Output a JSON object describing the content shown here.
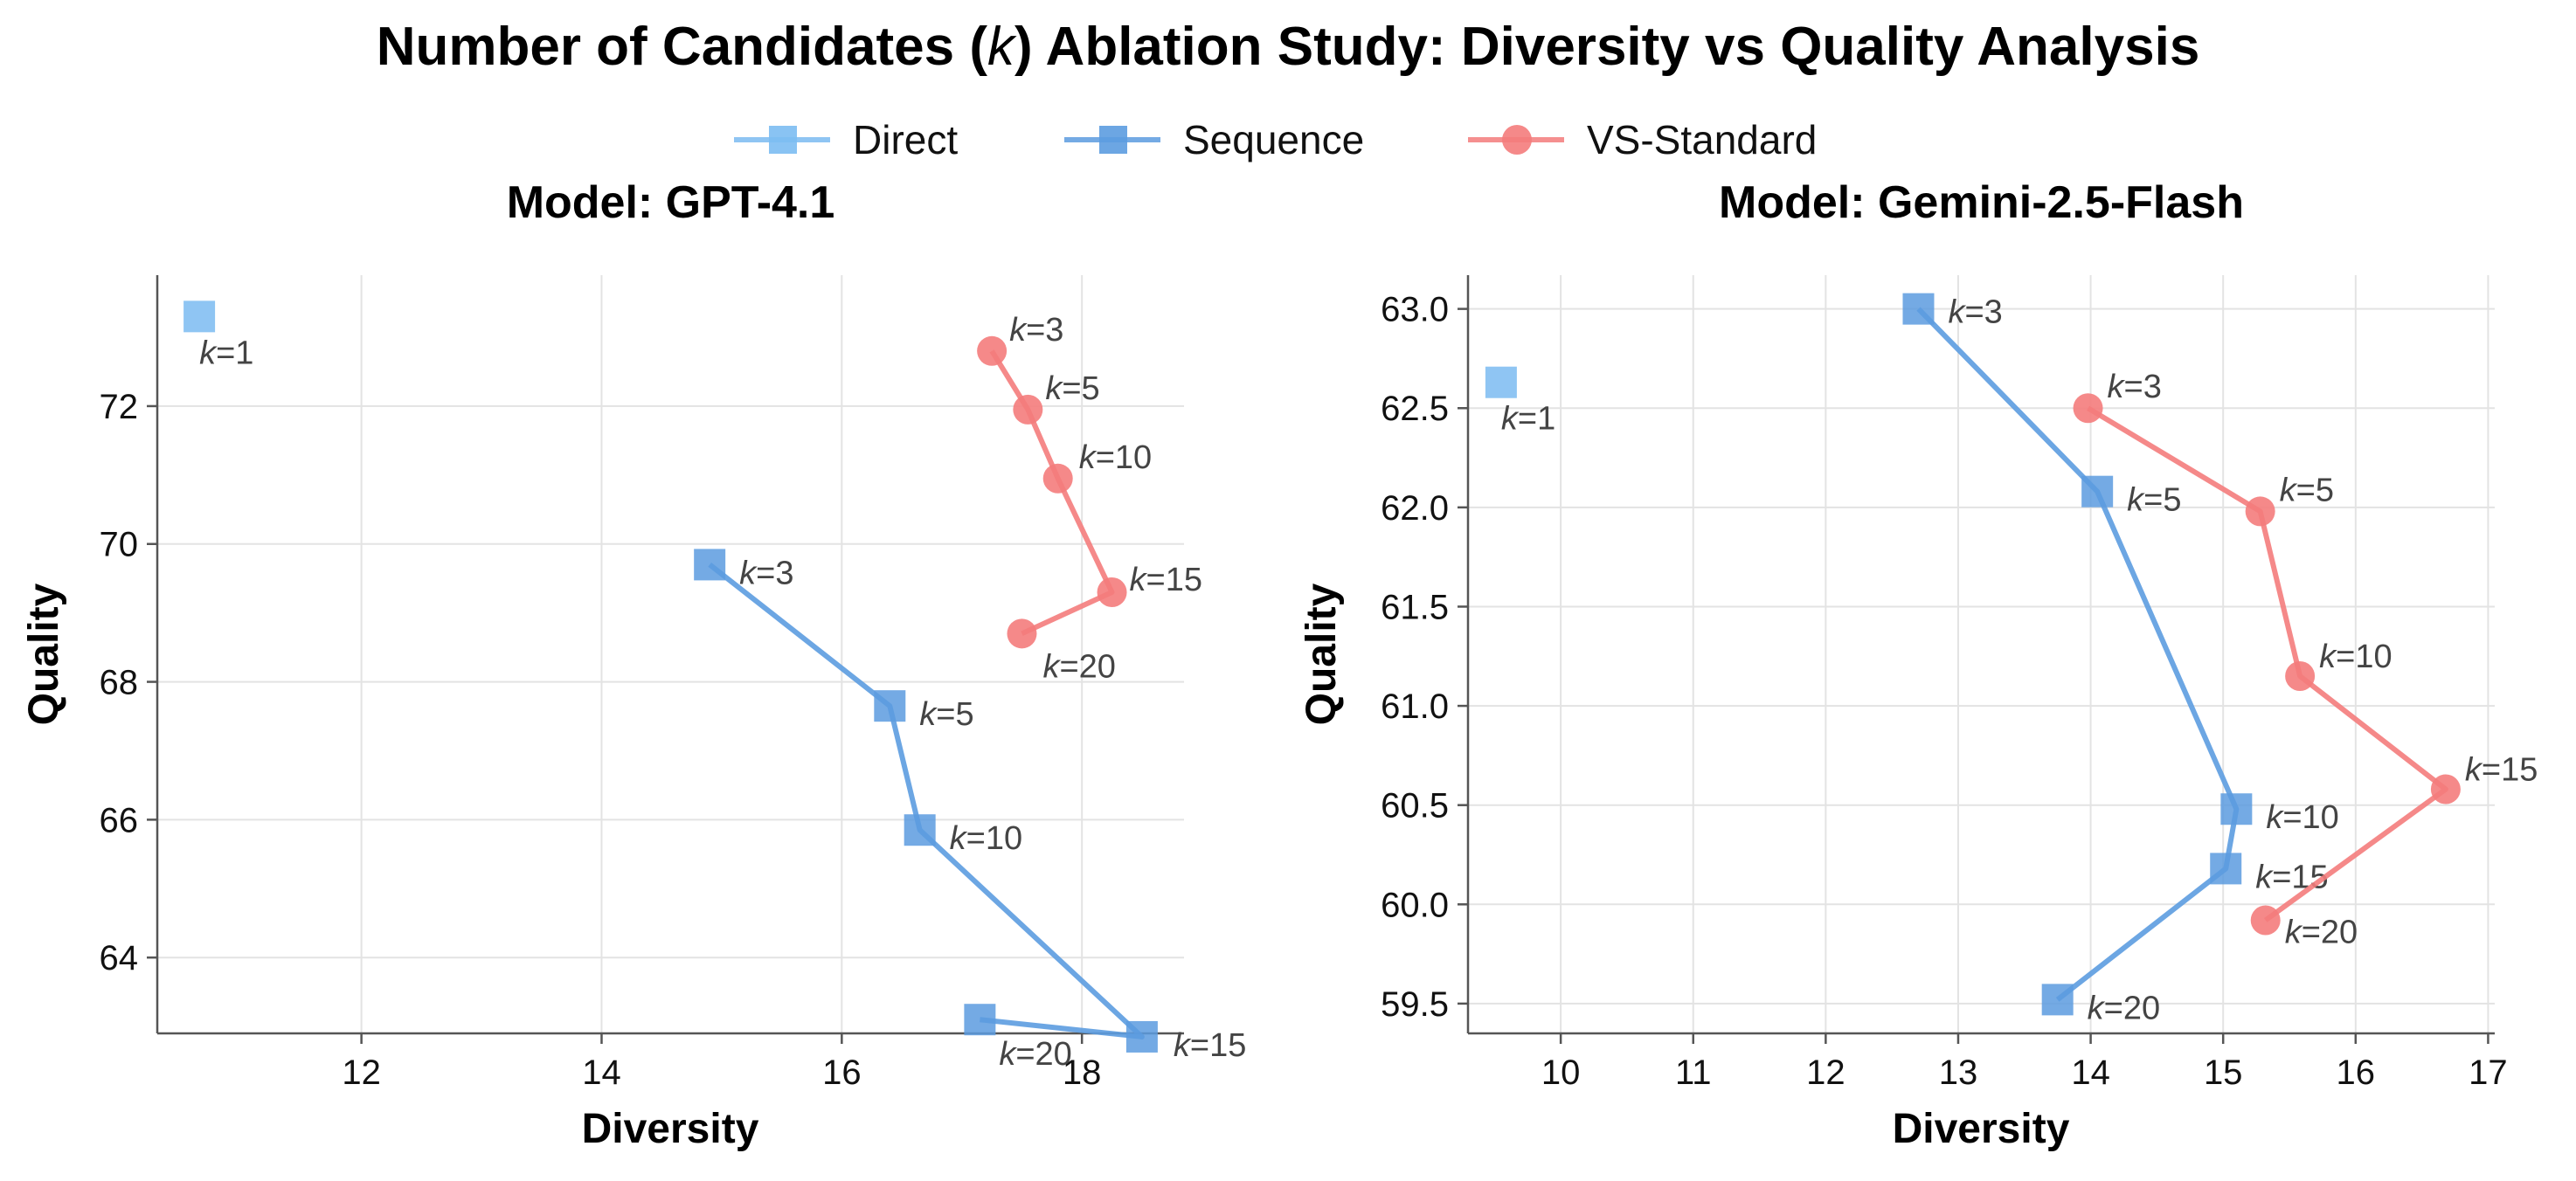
{
  "title": "Number of Candidates (k) Ablation Study: Diversity vs Quality Analysis",
  "title_parts": {
    "pre": "Number of Candidates (",
    "k": "k",
    "post": ") Ablation Study: Diversity vs Quality Analysis"
  },
  "legend": [
    {
      "name": "Direct",
      "color": "#7cbcf2",
      "marker": "square"
    },
    {
      "name": "Sequence",
      "color": "#5c9ce0",
      "marker": "square"
    },
    {
      "name": "VS-Standard",
      "color": "#f47c7c",
      "marker": "circle"
    }
  ],
  "chart_data": [
    {
      "type": "scatter",
      "title": "Model: GPT-4.1",
      "xlabel": "Diversity",
      "ylabel": "Quality",
      "xlim": [
        10.3,
        18.85
      ],
      "ylim": [
        62.9,
        73.9
      ],
      "xticks": [
        12,
        14,
        16,
        18
      ],
      "yticks": [
        64,
        66,
        68,
        70,
        72
      ],
      "grid": true,
      "series": [
        {
          "name": "Direct",
          "color": "#7cbcf2",
          "marker": "square",
          "line": false,
          "points": [
            {
              "x": 10.65,
              "y": 73.3,
              "k": "1"
            }
          ]
        },
        {
          "name": "Sequence",
          "color": "#5c9ce0",
          "marker": "square",
          "line": true,
          "points": [
            {
              "x": 14.9,
              "y": 69.7,
              "k": "3"
            },
            {
              "x": 16.4,
              "y": 67.65,
              "k": "5"
            },
            {
              "x": 16.65,
              "y": 65.85,
              "k": "10"
            },
            {
              "x": 18.5,
              "y": 62.85,
              "k": "15"
            },
            {
              "x": 17.15,
              "y": 63.1,
              "k": "20"
            }
          ]
        },
        {
          "name": "VS-Standard",
          "color": "#f47c7c",
          "marker": "circle",
          "line": true,
          "points": [
            {
              "x": 17.25,
              "y": 72.8,
              "k": "3"
            },
            {
              "x": 17.55,
              "y": 71.95,
              "k": "5"
            },
            {
              "x": 17.8,
              "y": 70.95,
              "k": "10"
            },
            {
              "x": 18.25,
              "y": 69.3,
              "k": "15"
            },
            {
              "x": 17.5,
              "y": 68.7,
              "k": "20"
            }
          ]
        }
      ]
    },
    {
      "type": "scatter",
      "title": "Model: Gemini-2.5-Flash",
      "xlabel": "Diversity",
      "ylabel": "Quality",
      "xlim": [
        9.3,
        17.05
      ],
      "ylim": [
        59.35,
        63.17
      ],
      "xticks": [
        10,
        11,
        12,
        13,
        14,
        15,
        16,
        17
      ],
      "yticks": [
        59.5,
        60.0,
        60.5,
        61.0,
        61.5,
        62.0,
        62.5,
        63.0
      ],
      "grid": true,
      "series": [
        {
          "name": "Direct",
          "color": "#7cbcf2",
          "marker": "square",
          "line": false,
          "points": [
            {
              "x": 9.55,
              "y": 62.63,
              "k": "1"
            }
          ]
        },
        {
          "name": "Sequence",
          "color": "#5c9ce0",
          "marker": "square",
          "line": true,
          "points": [
            {
              "x": 12.7,
              "y": 63.0,
              "k": "3"
            },
            {
              "x": 14.05,
              "y": 62.08,
              "k": "5"
            },
            {
              "x": 15.1,
              "y": 60.48,
              "k": "10"
            },
            {
              "x": 15.02,
              "y": 60.18,
              "k": "15"
            },
            {
              "x": 13.75,
              "y": 59.52,
              "k": "20"
            }
          ]
        },
        {
          "name": "VS-Standard",
          "color": "#f47c7c",
          "marker": "circle",
          "line": true,
          "points": [
            {
              "x": 13.98,
              "y": 62.5,
              "k": "3"
            },
            {
              "x": 15.28,
              "y": 61.98,
              "k": "5"
            },
            {
              "x": 15.58,
              "y": 61.15,
              "k": "10"
            },
            {
              "x": 16.68,
              "y": 60.58,
              "k": "15"
            },
            {
              "x": 15.32,
              "y": 59.92,
              "k": "20"
            }
          ]
        }
      ]
    }
  ]
}
